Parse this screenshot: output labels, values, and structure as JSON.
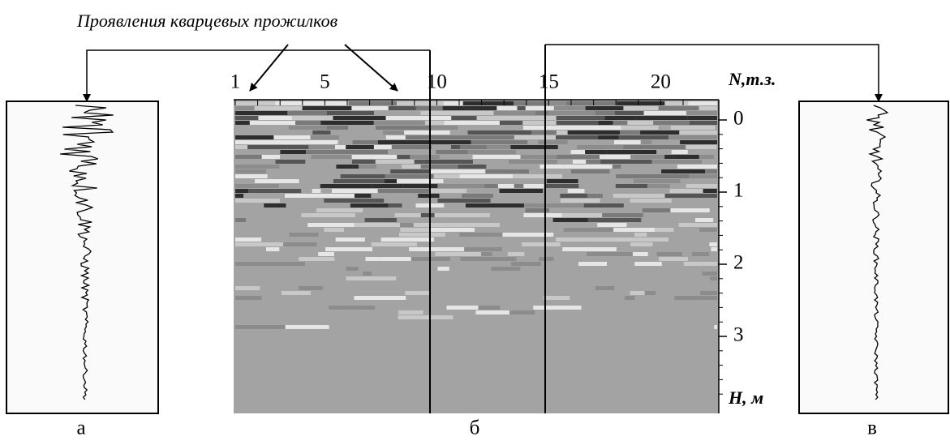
{
  "annotation": "Проявления кварцевых прожилков",
  "top_axis": {
    "label": "N,т.з.",
    "ticks": [
      1,
      5,
      10,
      15,
      20
    ]
  },
  "depth_axis": {
    "label": "H, м",
    "ticks": [
      0,
      1,
      2,
      3
    ]
  },
  "panels": [
    "а",
    "б",
    "в"
  ]
}
